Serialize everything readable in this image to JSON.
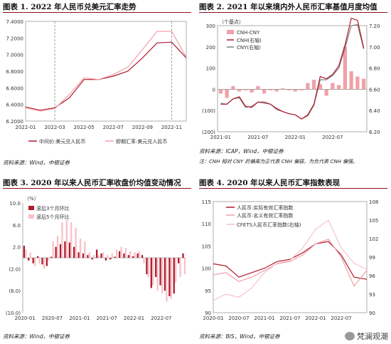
{
  "panels": {
    "p1": {
      "title": "图表 1. 2022 年人民币兑美元汇率走势",
      "source": "资料来源：Wind，中银证券"
    },
    "p2": {
      "title": "图表 2. 2021 年以来境内外人民币汇率基值月度均值",
      "source": "资料来源：ICAP，Wind，中银证券",
      "note": "注：CNH 相对 CNY 的偏离为正代表 CNH 偏弱，为负代表 CNH 偏强。"
    },
    "p3": {
      "title": "图表 3. 2020 年以来人民币汇率收盘价均值变动情况",
      "source": "资料来源：Wind，中银证券"
    },
    "p4": {
      "title": "图表 4. 2020 年以来人民币汇率指数表现",
      "source": "资料来源：BIS，Wind，中银证券"
    }
  },
  "watermark": "梵澜观潮",
  "colors": {
    "dark_red": "#b01c2e",
    "pink": "#f0a0a8",
    "gray": "#7f7f7f",
    "light_pink": "#f6c2c8"
  },
  "chart_data": [
    {
      "type": "line",
      "x": [
        "2022-01",
        "2022-02",
        "2022-03",
        "2022-04",
        "2022-05",
        "2022-06",
        "2022-07",
        "2022-08",
        "2022-09",
        "2022-10",
        "2022-11",
        "2022-12"
      ],
      "x_ticks": [
        "2022-01",
        "2022-03",
        "2022-05",
        "2022-07",
        "2022-09",
        "2022-11"
      ],
      "y_ticks": [
        "7.4000",
        "7.2000",
        "7.0000",
        "6.8000",
        "6.6000",
        "6.4000",
        "6.2000"
      ],
      "ylim": [
        6.2,
        7.4
      ],
      "vlines": [
        "2022-03",
        "2022-11"
      ],
      "series": [
        {
          "name": "中间价:美元兑人民币",
          "color": "#b01c2e",
          "values": [
            6.37,
            6.33,
            6.36,
            6.48,
            6.7,
            6.7,
            6.74,
            6.8,
            6.96,
            7.14,
            7.15,
            6.96
          ]
        },
        {
          "name": "即期汇率:美元兑人民币",
          "color": "#f0a0a8",
          "values": [
            6.36,
            6.32,
            6.35,
            6.52,
            6.72,
            6.7,
            6.76,
            6.85,
            7.06,
            7.28,
            7.28,
            6.97
          ]
        }
      ]
    },
    {
      "type": "bar",
      "categories": [
        "2021-01",
        "2021-02",
        "2021-03",
        "2021-04",
        "2021-05",
        "2021-06",
        "2021-07",
        "2021-08",
        "2021-09",
        "2021-10",
        "2021-11",
        "2021-12",
        "2022-01",
        "2022-02",
        "2022-03",
        "2022-04",
        "2022-05",
        "2022-06",
        "2022-07",
        "2022-08",
        "2022-09",
        "2022-10",
        "2022-11",
        "2022-12"
      ],
      "x_ticks": [
        "2021-01",
        "2021-07",
        "2022-01",
        "2022-07"
      ],
      "y_label": "（个基点）",
      "y_ticks": [
        "300",
        "200",
        "100",
        "0",
        "(100)",
        "(200)"
      ],
      "ylim": [
        -200,
        300
      ],
      "y2_ticks": [
        "7.20",
        "7.00",
        "6.80",
        "6.60",
        "6.40",
        "6.20"
      ],
      "y2lim": [
        6.2,
        7.2
      ],
      "series": [
        {
          "name": "CNH-CNY",
          "color": "#f0a0a8",
          "axis": "left",
          "values": [
            -20,
            -40,
            15,
            -10,
            -5,
            -15,
            15,
            -20,
            -5,
            -10,
            5,
            -5,
            -10,
            -5,
            30,
            45,
            25,
            -30,
            30,
            20,
            200,
            85,
            60,
            50
          ]
        },
        {
          "name": "CNH(右轴)",
          "color": "#b01c2e",
          "axis": "right",
          "values": [
            6.46,
            6.46,
            6.51,
            6.53,
            6.44,
            6.43,
            6.48,
            6.48,
            6.46,
            6.42,
            6.39,
            6.37,
            6.36,
            6.32,
            6.36,
            6.46,
            6.72,
            6.7,
            6.74,
            6.82,
            7.02,
            7.27,
            7.25,
            6.99
          ]
        },
        {
          "name": "CNY(右轴)",
          "color": "#7f7f7f",
          "axis": "right",
          "values": [
            6.47,
            6.46,
            6.51,
            6.52,
            6.43,
            6.44,
            6.48,
            6.47,
            6.46,
            6.41,
            6.39,
            6.37,
            6.36,
            6.32,
            6.35,
            6.45,
            6.69,
            6.69,
            6.73,
            6.8,
            6.99,
            7.2,
            7.21,
            6.98
          ]
        }
      ]
    },
    {
      "type": "bar",
      "categories": [
        "2020-01",
        "2020-02",
        "2020-03",
        "2020-04",
        "2020-05",
        "2020-06",
        "2020-07",
        "2020-08",
        "2020-09",
        "2020-10",
        "2020-11",
        "2020-12",
        "2021-01",
        "2021-02",
        "2021-03",
        "2021-04",
        "2021-05",
        "2021-06",
        "2021-07",
        "2021-08",
        "2021-09",
        "2021-10",
        "2021-11",
        "2021-12",
        "2022-01",
        "2022-02",
        "2022-03",
        "2022-04",
        "2022-05",
        "2022-06",
        "2022-07",
        "2022-08",
        "2022-09",
        "2022-10",
        "2022-11",
        "2022-12"
      ],
      "x_ticks": [
        "2020-01",
        "2020-07",
        "2021-01",
        "2021-07",
        "2022-01",
        "2022-07"
      ],
      "y_label": "（%）",
      "y_ticks": [
        "10.0",
        "6.0",
        "2.0",
        "(2.0)",
        "(6.0)",
        "(10.0)"
      ],
      "ylim": [
        -10,
        10
      ],
      "series": [
        {
          "name": "滚后3个月环比",
          "color": "#b01c2e",
          "values": [
            2.2,
            -0.5,
            -1.0,
            0.3,
            -1.2,
            -1.5,
            0.2,
            2.0,
            2.5,
            3.0,
            2.8,
            2.0,
            1.0,
            0.8,
            0.5,
            -0.3,
            1.5,
            0.8,
            -0.5,
            -0.3,
            0.2,
            1.2,
            0.8,
            0.5,
            0.3,
            0.8,
            0.5,
            -3.0,
            -5.5,
            -3.5,
            -5.0,
            -6.0,
            -7.0,
            -6.5,
            -1.0,
            0.8
          ]
        },
        {
          "name": "滚后5个月环比",
          "color": "#f6c2c8",
          "values": [
            1.5,
            1.0,
            -1.5,
            -1.0,
            -2.0,
            -0.5,
            3.0,
            4.0,
            6.5,
            7.0,
            6.5,
            5.5,
            3.5,
            3.0,
            1.0,
            0.5,
            0.5,
            1.0,
            0.5,
            0.8,
            1.5,
            2.0,
            1.8,
            1.2,
            1.0,
            1.2,
            -1.0,
            -3.5,
            -5.0,
            -6.0,
            -6.5,
            -8.0,
            -7.5,
            -4.5,
            -3.5,
            -3.0
          ]
        }
      ]
    },
    {
      "type": "line",
      "x": [
        "2020-01",
        "2020-04",
        "2020-07",
        "2020-10",
        "2021-01",
        "2021-04",
        "2021-07",
        "2021-10",
        "2022-01",
        "2022-04",
        "2022-07",
        "2022-10",
        "2022-12"
      ],
      "x_ticks": [
        "2020-01",
        "2020-07",
        "2021-01",
        "2021-07",
        "2022-01",
        "2022-07"
      ],
      "y_ticks": [
        "115",
        "110",
        "105",
        "100",
        "95",
        "90"
      ],
      "ylim": [
        90,
        115
      ],
      "y2_ticks": [
        "108",
        "105",
        "102",
        "99",
        "96",
        "93",
        "90"
      ],
      "y2lim": [
        90,
        108
      ],
      "series": [
        {
          "name": "人民币:实际有效汇率指数",
          "color": "#b01c2e",
          "axis": "left",
          "values": [
            101.0,
            100.5,
            98.0,
            99.0,
            100.0,
            101.5,
            102.0,
            103.5,
            105.5,
            106.0,
            103.0,
            98.0,
            97.5
          ]
        },
        {
          "name": "人民币:名义有效汇率指数",
          "color": "#f0a0a8",
          "axis": "left",
          "values": [
            98.5,
            99.0,
            97.0,
            98.0,
            99.5,
            101.0,
            101.5,
            103.0,
            105.5,
            106.5,
            102.5,
            96.0,
            99.5
          ]
        },
        {
          "name": "CFETS人民币汇率指数(右轴)",
          "color": "#f6c2c8",
          "axis": "right",
          "values": [
            92.0,
            93.0,
            92.5,
            94.0,
            96.5,
            98.0,
            98.5,
            100.5,
            103.5,
            105.0,
            100.5,
            98.0,
            97.0
          ]
        }
      ]
    }
  ]
}
